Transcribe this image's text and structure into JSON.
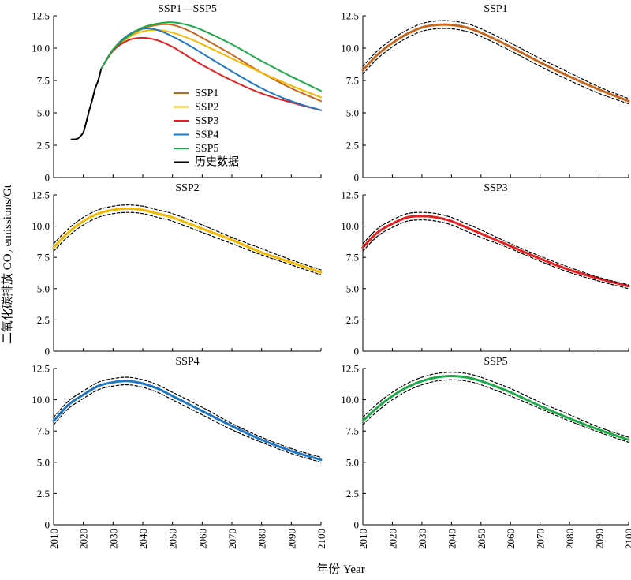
{
  "figure": {
    "ylabel": "二氧化碳排放 CO₂ emissions/Gt",
    "xlabel": "年份 Year",
    "legend_placement": "center",
    "colors": {
      "SSP1": "#c8661f",
      "SSP2": "#f5b800",
      "SSP3": "#e81e1e",
      "SSP4": "#1f77c4",
      "SSP5": "#1faa4a",
      "history": "#000000",
      "bounds": "#000000"
    }
  },
  "chart_data": [
    {
      "type": "line",
      "title": "SSP1—SSP5",
      "x_ticks": [
        2010,
        2020,
        2030,
        2040,
        2050,
        2060,
        2070,
        2080,
        2090,
        2100
      ],
      "xlim": [
        2010,
        2100
      ],
      "y_ticks": [
        "0",
        "2.5",
        "5.0",
        "7.5",
        "10.0",
        "12.5"
      ],
      "ylim": [
        0,
        12.5
      ],
      "legend": [
        "SSP1",
        "SSP2",
        "SSP3",
        "SSP4",
        "SSP5",
        "历史数据"
      ],
      "series": [
        {
          "name": "历史数据",
          "key": "history",
          "x": [
            2016,
            2017,
            2018,
            2019,
            2020,
            2021,
            2022,
            2023,
            2024,
            2025,
            2026
          ],
          "values": [
            2.95,
            2.95,
            3.0,
            3.2,
            3.5,
            4.3,
            5.2,
            6.0,
            6.9,
            7.5,
            8.4
          ]
        },
        {
          "name": "SSP1",
          "key": "SSP1",
          "x": [
            2026,
            2030,
            2035,
            2040,
            2045,
            2050,
            2055,
            2060,
            2070,
            2080,
            2090,
            2100
          ],
          "values": [
            8.4,
            9.8,
            10.9,
            11.5,
            11.8,
            11.8,
            11.4,
            10.8,
            9.5,
            8.1,
            6.9,
            5.9
          ]
        },
        {
          "name": "SSP2",
          "key": "SSP2",
          "x": [
            2026,
            2030,
            2035,
            2040,
            2045,
            2050,
            2055,
            2060,
            2070,
            2080,
            2090,
            2100
          ],
          "values": [
            8.4,
            9.8,
            10.8,
            11.3,
            11.4,
            11.2,
            10.8,
            10.3,
            9.2,
            8.1,
            7.1,
            6.2
          ]
        },
        {
          "name": "SSP3",
          "key": "SSP3",
          "x": [
            2026,
            2030,
            2035,
            2040,
            2045,
            2050,
            2055,
            2060,
            2070,
            2080,
            2090,
            2100
          ],
          "values": [
            8.4,
            9.8,
            10.6,
            10.8,
            10.6,
            10.1,
            9.4,
            8.7,
            7.5,
            6.5,
            5.8,
            5.2
          ]
        },
        {
          "name": "SSP4",
          "key": "SSP4",
          "x": [
            2026,
            2030,
            2035,
            2040,
            2045,
            2050,
            2055,
            2060,
            2070,
            2080,
            2090,
            2100
          ],
          "values": [
            8.4,
            9.9,
            11.0,
            11.5,
            11.4,
            10.9,
            10.3,
            9.6,
            8.2,
            6.9,
            5.9,
            5.2
          ]
        },
        {
          "name": "SSP5",
          "key": "SSP5",
          "x": [
            2026,
            2030,
            2035,
            2040,
            2045,
            2050,
            2055,
            2060,
            2070,
            2080,
            2090,
            2100
          ],
          "values": [
            8.4,
            9.9,
            10.9,
            11.6,
            11.9,
            12.0,
            11.8,
            11.4,
            10.3,
            9.0,
            7.8,
            6.7
          ]
        }
      ]
    },
    {
      "type": "line",
      "title": "SSP1",
      "x_ticks": [
        2010,
        2020,
        2030,
        2040,
        2050,
        2060,
        2070,
        2080,
        2090,
        2100
      ],
      "xlim": [
        2010,
        2100
      ],
      "y_ticks": [
        "0",
        "2.5",
        "5.0",
        "7.5",
        "10.0",
        "12.5"
      ],
      "ylim": [
        0,
        12.5
      ],
      "series": [
        {
          "key": "SSP1",
          "x": [
            2010,
            2015,
            2020,
            2025,
            2030,
            2035,
            2040,
            2045,
            2050,
            2060,
            2070,
            2080,
            2090,
            2100
          ],
          "values": [
            8.3,
            9.5,
            10.4,
            11.1,
            11.6,
            11.8,
            11.8,
            11.6,
            11.2,
            10.1,
            8.9,
            7.8,
            6.8,
            5.9
          ]
        },
        {
          "key": "bounds",
          "bound": "upper",
          "x": [
            2010,
            2015,
            2020,
            2025,
            2030,
            2035,
            2040,
            2045,
            2050,
            2060,
            2070,
            2080,
            2090,
            2100
          ],
          "values": [
            8.6,
            9.8,
            10.7,
            11.4,
            11.9,
            12.1,
            12.1,
            11.9,
            11.5,
            10.4,
            9.2,
            8.1,
            7.0,
            6.1
          ]
        },
        {
          "key": "bounds",
          "bound": "lower",
          "x": [
            2010,
            2015,
            2020,
            2025,
            2030,
            2035,
            2040,
            2045,
            2050,
            2060,
            2070,
            2080,
            2090,
            2100
          ],
          "values": [
            8.0,
            9.2,
            10.1,
            10.8,
            11.3,
            11.5,
            11.5,
            11.3,
            10.9,
            9.8,
            8.6,
            7.5,
            6.5,
            5.7
          ]
        }
      ]
    },
    {
      "type": "line",
      "title": "SSP2",
      "x_ticks": [
        2010,
        2020,
        2030,
        2040,
        2050,
        2060,
        2070,
        2080,
        2090,
        2100
      ],
      "xlim": [
        2010,
        2100
      ],
      "y_ticks": [
        "0",
        "2.5",
        "5.0",
        "7.5",
        "10.0",
        "12.5"
      ],
      "ylim": [
        0,
        12.5
      ],
      "series": [
        {
          "key": "SSP2",
          "x": [
            2010,
            2015,
            2020,
            2025,
            2030,
            2035,
            2040,
            2045,
            2050,
            2060,
            2070,
            2080,
            2090,
            2100
          ],
          "values": [
            8.3,
            9.5,
            10.4,
            11.0,
            11.3,
            11.4,
            11.3,
            11.0,
            10.7,
            9.8,
            8.9,
            7.9,
            7.1,
            6.3
          ]
        },
        {
          "key": "bounds",
          "bound": "upper",
          "x": [
            2010,
            2015,
            2020,
            2025,
            2030,
            2035,
            2040,
            2045,
            2050,
            2060,
            2070,
            2080,
            2090,
            2100
          ],
          "values": [
            8.6,
            9.8,
            10.7,
            11.3,
            11.6,
            11.7,
            11.6,
            11.3,
            11.0,
            10.1,
            9.1,
            8.2,
            7.3,
            6.5
          ]
        },
        {
          "key": "bounds",
          "bound": "lower",
          "x": [
            2010,
            2015,
            2020,
            2025,
            2030,
            2035,
            2040,
            2045,
            2050,
            2060,
            2070,
            2080,
            2090,
            2100
          ],
          "values": [
            8.0,
            9.2,
            10.1,
            10.7,
            11.0,
            11.1,
            11.0,
            10.7,
            10.4,
            9.5,
            8.6,
            7.7,
            6.9,
            6.1
          ]
        }
      ]
    },
    {
      "type": "line",
      "title": "SSP3",
      "x_ticks": [
        2010,
        2020,
        2030,
        2040,
        2050,
        2060,
        2070,
        2080,
        2090,
        2100
      ],
      "xlim": [
        2010,
        2100
      ],
      "y_ticks": [
        "0",
        "2.5",
        "5.0",
        "7.5",
        "10.0",
        "12.5"
      ],
      "ylim": [
        0,
        12.5
      ],
      "series": [
        {
          "key": "SSP3",
          "x": [
            2010,
            2015,
            2020,
            2025,
            2030,
            2035,
            2040,
            2045,
            2050,
            2060,
            2070,
            2080,
            2090,
            2100
          ],
          "values": [
            8.3,
            9.5,
            10.2,
            10.7,
            10.8,
            10.7,
            10.4,
            9.9,
            9.4,
            8.4,
            7.4,
            6.5,
            5.8,
            5.2
          ]
        },
        {
          "key": "bounds",
          "bound": "upper",
          "x": [
            2010,
            2015,
            2020,
            2025,
            2030,
            2035,
            2040,
            2045,
            2050,
            2060,
            2070,
            2080,
            2090,
            2100
          ],
          "values": [
            8.6,
            9.8,
            10.5,
            11.0,
            11.1,
            11.0,
            10.7,
            10.2,
            9.7,
            8.6,
            7.6,
            6.7,
            5.9,
            5.3
          ]
        },
        {
          "key": "bounds",
          "bound": "lower",
          "x": [
            2010,
            2015,
            2020,
            2025,
            2030,
            2035,
            2040,
            2045,
            2050,
            2060,
            2070,
            2080,
            2090,
            2100
          ],
          "values": [
            8.0,
            9.2,
            9.9,
            10.4,
            10.5,
            10.4,
            10.1,
            9.6,
            9.1,
            8.2,
            7.2,
            6.3,
            5.6,
            5.0
          ]
        }
      ]
    },
    {
      "type": "line",
      "title": "SSP4",
      "x_ticks": [
        2010,
        2020,
        2030,
        2040,
        2050,
        2060,
        2070,
        2080,
        2090,
        2100
      ],
      "xlim": [
        2010,
        2100
      ],
      "y_ticks": [
        "0",
        "2.5",
        "5.0",
        "7.5",
        "10.0",
        "12.5"
      ],
      "ylim": [
        0,
        12.5
      ],
      "series": [
        {
          "key": "SSP4",
          "x": [
            2010,
            2015,
            2020,
            2025,
            2030,
            2035,
            2040,
            2045,
            2050,
            2060,
            2070,
            2080,
            2090,
            2100
          ],
          "values": [
            8.3,
            9.6,
            10.4,
            11.1,
            11.4,
            11.5,
            11.3,
            10.9,
            10.3,
            9.1,
            7.9,
            6.8,
            5.9,
            5.2
          ]
        },
        {
          "key": "bounds",
          "bound": "upper",
          "x": [
            2010,
            2015,
            2020,
            2025,
            2030,
            2035,
            2040,
            2045,
            2050,
            2060,
            2070,
            2080,
            2090,
            2100
          ],
          "values": [
            8.6,
            9.9,
            10.7,
            11.4,
            11.7,
            11.8,
            11.6,
            11.2,
            10.6,
            9.4,
            8.1,
            7.0,
            6.1,
            5.4
          ]
        },
        {
          "key": "bounds",
          "bound": "lower",
          "x": [
            2010,
            2015,
            2020,
            2025,
            2030,
            2035,
            2040,
            2045,
            2050,
            2060,
            2070,
            2080,
            2090,
            2100
          ],
          "values": [
            8.0,
            9.3,
            10.1,
            10.8,
            11.1,
            11.2,
            11.0,
            10.6,
            10.0,
            8.8,
            7.6,
            6.6,
            5.7,
            5.0
          ]
        }
      ]
    },
    {
      "type": "line",
      "title": "SSP5",
      "x_ticks": [
        2010,
        2020,
        2030,
        2040,
        2050,
        2060,
        2070,
        2080,
        2090,
        2100
      ],
      "xlim": [
        2010,
        2100
      ],
      "y_ticks": [
        "0",
        "2.5",
        "5.0",
        "7.5",
        "10.0",
        "12.5"
      ],
      "ylim": [
        0,
        12.5
      ],
      "series": [
        {
          "key": "SSP5",
          "x": [
            2010,
            2015,
            2020,
            2025,
            2030,
            2035,
            2040,
            2045,
            2050,
            2060,
            2070,
            2080,
            2090,
            2100
          ],
          "values": [
            8.3,
            9.4,
            10.3,
            11.0,
            11.5,
            11.8,
            11.9,
            11.8,
            11.5,
            10.6,
            9.5,
            8.5,
            7.6,
            6.8
          ]
        },
        {
          "key": "bounds",
          "bound": "upper",
          "x": [
            2010,
            2015,
            2020,
            2025,
            2030,
            2035,
            2040,
            2045,
            2050,
            2060,
            2070,
            2080,
            2090,
            2100
          ],
          "values": [
            8.6,
            9.7,
            10.6,
            11.3,
            11.8,
            12.1,
            12.2,
            12.1,
            11.8,
            10.9,
            9.8,
            8.8,
            7.8,
            7.0
          ]
        },
        {
          "key": "bounds",
          "bound": "lower",
          "x": [
            2010,
            2015,
            2020,
            2025,
            2030,
            2035,
            2040,
            2045,
            2050,
            2060,
            2070,
            2080,
            2090,
            2100
          ],
          "values": [
            8.0,
            9.1,
            10.0,
            10.7,
            11.2,
            11.5,
            11.6,
            11.5,
            11.2,
            10.3,
            9.3,
            8.3,
            7.4,
            6.6
          ]
        }
      ]
    }
  ]
}
